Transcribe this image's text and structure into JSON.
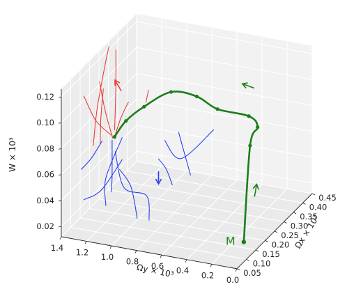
{
  "chart_data": {
    "type": "3d-line",
    "title": "",
    "axes": {
      "x": {
        "label": "Ω_y × 10³",
        "label_text": "Ωy × 10³",
        "range": [
          0.0,
          1.4
        ],
        "ticks": [
          "0.0",
          "0.2",
          "0.4",
          "0.6",
          "0.8",
          "1.0",
          "1.2",
          "1.4"
        ]
      },
      "y": {
        "label": "Ω_x × 10³",
        "label_text": "Ωx × 10³",
        "range": [
          0.05,
          0.45
        ],
        "ticks": [
          "0.05",
          "0.10",
          "0.15",
          "0.20",
          "0.25",
          "0.30",
          "0.35",
          "0.40",
          "0.45"
        ]
      },
      "z": {
        "label": "W × 10³",
        "label_text": "W × 10³",
        "range": [
          0.02,
          0.12
        ],
        "ticks": [
          "0.02",
          "0.04",
          "0.06",
          "0.08",
          "0.10",
          "0.12"
        ]
      }
    },
    "annotations": [
      {
        "text": "M",
        "color": "#228B22"
      }
    ],
    "grid": true,
    "colors": {
      "main": "#1a7f1a",
      "red": "#e8403a",
      "blue": "#2b3ff0",
      "pane": "#f2f2f2"
    },
    "series": [
      {
        "color": "main",
        "role": "main trajectory",
        "values": [
          [
            0.02,
            0.1,
            0.025
          ],
          [
            0.06,
            0.16,
            0.09
          ],
          [
            0.09,
            0.22,
            0.095
          ],
          [
            0.25,
            0.28,
            0.092
          ],
          [
            0.5,
            0.28,
            0.093
          ],
          [
            0.62,
            0.25,
            0.105
          ],
          [
            0.78,
            0.22,
            0.11
          ],
          [
            0.95,
            0.19,
            0.1
          ],
          [
            1.02,
            0.14,
            0.095
          ],
          [
            1.05,
            0.1,
            0.088
          ]
        ]
      },
      {
        "color": "red",
        "values": [
          [
            1.25,
            0.12,
            0.075
          ],
          [
            1.25,
            0.14,
            0.1
          ],
          [
            1.22,
            0.16,
            0.13
          ],
          [
            1.2,
            0.17,
            0.145
          ]
        ]
      },
      {
        "color": "red",
        "values": [
          [
            1.08,
            0.12,
            0.09
          ],
          [
            1.1,
            0.14,
            0.12
          ],
          [
            1.13,
            0.16,
            0.145
          ]
        ]
      },
      {
        "color": "red",
        "values": [
          [
            1.08,
            0.11,
            0.085
          ],
          [
            1.14,
            0.11,
            0.105
          ],
          [
            1.2,
            0.12,
            0.125
          ]
        ]
      },
      {
        "color": "red",
        "values": [
          [
            1.15,
            0.09,
            0.082
          ],
          [
            1.16,
            0.1,
            0.1
          ],
          [
            1.17,
            0.12,
            0.12
          ]
        ]
      },
      {
        "color": "red",
        "values": [
          [
            1.08,
            0.1,
            0.089
          ],
          [
            1.2,
            0.1,
            0.098
          ],
          [
            1.34,
            0.13,
            0.11
          ]
        ]
      },
      {
        "color": "red",
        "values": [
          [
            1.05,
            0.1,
            0.088
          ],
          [
            1.03,
            0.12,
            0.1
          ],
          [
            1.0,
            0.14,
            0.11
          ]
        ]
      },
      {
        "color": "red",
        "values": [
          [
            0.95,
            0.2,
            0.102
          ],
          [
            0.9,
            0.18,
            0.115
          ]
        ]
      },
      {
        "color": "blue",
        "values": [
          [
            1.07,
            0.1,
            0.085
          ],
          [
            1.1,
            0.12,
            0.055
          ],
          [
            1.12,
            0.13,
            0.04
          ]
        ]
      },
      {
        "color": "blue",
        "values": [
          [
            1.06,
            0.11,
            0.075
          ],
          [
            1.02,
            0.13,
            0.045
          ],
          [
            0.9,
            0.17,
            0.035
          ],
          [
            0.85,
            0.15,
            0.02
          ]
        ]
      },
      {
        "color": "blue",
        "values": [
          [
            1.02,
            0.12,
            0.085
          ],
          [
            1.18,
            0.14,
            0.048
          ],
          [
            1.24,
            0.18,
            0.02
          ]
        ]
      },
      {
        "color": "blue",
        "values": [
          [
            1.3,
            0.09,
            0.06
          ],
          [
            1.22,
            0.09,
            0.07
          ],
          [
            1.15,
            0.1,
            0.083
          ]
        ]
      },
      {
        "color": "blue",
        "values": [
          [
            1.04,
            0.12,
            0.06
          ],
          [
            0.98,
            0.14,
            0.045
          ],
          [
            0.96,
            0.16,
            0.018
          ]
        ]
      },
      {
        "color": "blue",
        "values": [
          [
            0.85,
            0.2,
            0.06
          ],
          [
            0.82,
            0.22,
            0.05
          ],
          [
            0.8,
            0.24,
            0.035
          ]
        ]
      },
      {
        "color": "blue",
        "values": [
          [
            0.72,
            0.22,
            0.08
          ],
          [
            0.7,
            0.24,
            0.06
          ],
          [
            0.7,
            0.27,
            0.04
          ]
        ]
      },
      {
        "color": "blue",
        "values": [
          [
            0.5,
            0.26,
            0.08
          ],
          [
            0.7,
            0.22,
            0.06
          ],
          [
            0.8,
            0.2,
            0.075
          ]
        ]
      },
      {
        "color": "blue",
        "values": [
          [
            1.02,
            0.12,
            0.068
          ],
          [
            1.2,
            0.13,
            0.04
          ],
          [
            1.34,
            0.13,
            0.03
          ]
        ]
      }
    ]
  }
}
